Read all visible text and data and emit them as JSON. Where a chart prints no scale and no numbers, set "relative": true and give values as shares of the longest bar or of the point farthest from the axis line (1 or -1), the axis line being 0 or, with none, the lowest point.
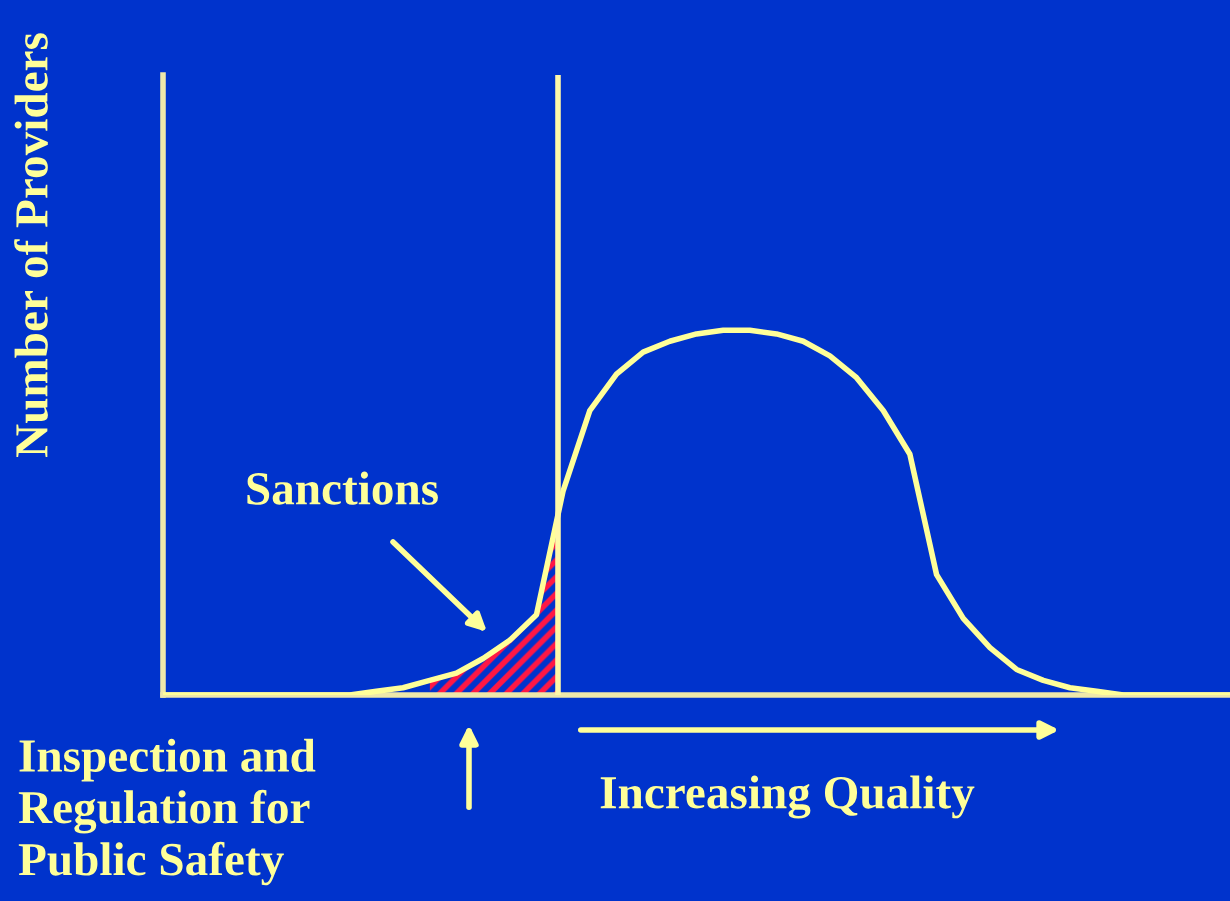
{
  "chart_data": {
    "type": "line",
    "relative": true,
    "ylabel": "Number of Providers",
    "categories": [
      null,
      null,
      null,
      null,
      null,
      null,
      null,
      null,
      null,
      null,
      null,
      null,
      null,
      null,
      null,
      null,
      null,
      null,
      null,
      null,
      null,
      null,
      null,
      null,
      null,
      null,
      null,
      null,
      null,
      null,
      null,
      null,
      null,
      null,
      null,
      null,
      null,
      null,
      null,
      null,
      null
    ],
    "series": [
      {
        "color": "#ffff99",
        "values": [
          0,
          0,
          0,
          0,
          0,
          0,
          0,
          0,
          0.01,
          0.02,
          0.04,
          0.06,
          0.1,
          0.15,
          0.22,
          0.56,
          0.78,
          0.88,
          0.94,
          0.97,
          0.99,
          1.0,
          1.0,
          0.99,
          0.97,
          0.93,
          0.87,
          0.78,
          0.66,
          0.33,
          0.21,
          0.13,
          0.07,
          0.04,
          0.02,
          0.01,
          0,
          0,
          0,
          0,
          0
        ]
      }
    ],
    "annotations": [
      "Sanctions",
      "Inspection and\nRegulation for\nPublic Safety",
      "Increasing Quality"
    ],
    "legend": false
  }
}
